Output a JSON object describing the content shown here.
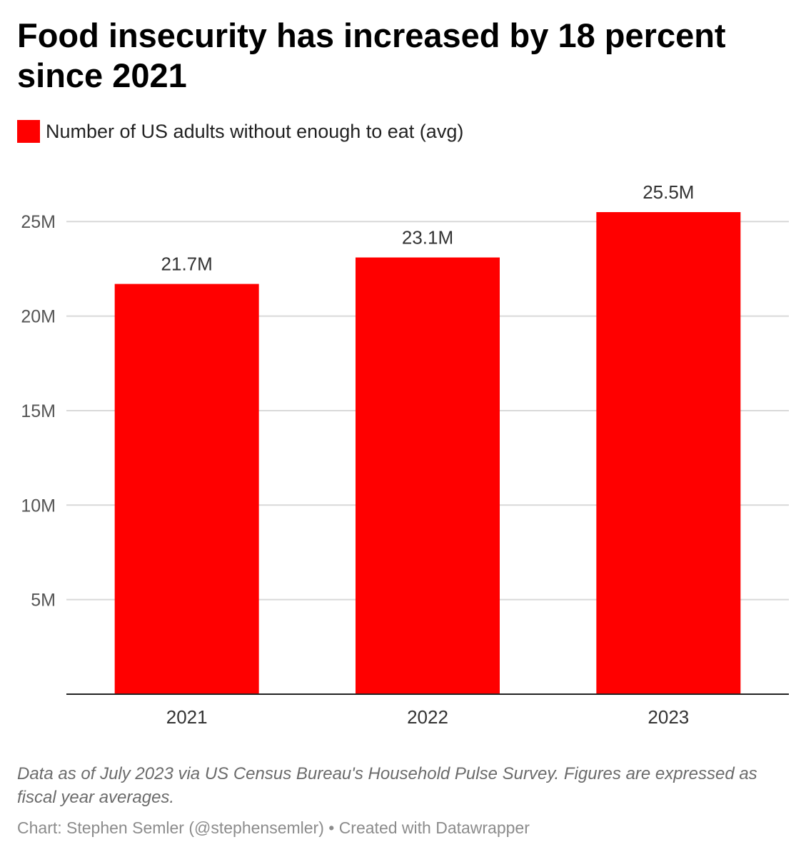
{
  "title": "Food insecurity has increased by 18 percent since 2021",
  "legend": {
    "label": "Number of US adults without enough to eat (avg)",
    "color": "#ff0000"
  },
  "chart_data": {
    "type": "bar",
    "categories": [
      "2021",
      "2022",
      "2023"
    ],
    "series": [
      {
        "name": "Number of US adults without enough to eat (avg)",
        "values": [
          21.7,
          23.1,
          25.5
        ],
        "value_labels": [
          "21.7M",
          "23.1M",
          "25.5M"
        ],
        "color": "#ff0000"
      }
    ],
    "ylim": [
      0,
      25.5
    ],
    "yticks": [
      5,
      10,
      15,
      20,
      25
    ],
    "ytick_labels": [
      "5M",
      "10M",
      "15M",
      "20M",
      "25M"
    ],
    "unit": "M",
    "grid": true,
    "legend_position": "top-left"
  },
  "notes": "Data as of July 2023 via US Census Bureau's Household Pulse Survey. Figures are expressed as fiscal year averages.",
  "credit": "Chart: Stephen Semler (@stephensemler) • Created with Datawrapper"
}
